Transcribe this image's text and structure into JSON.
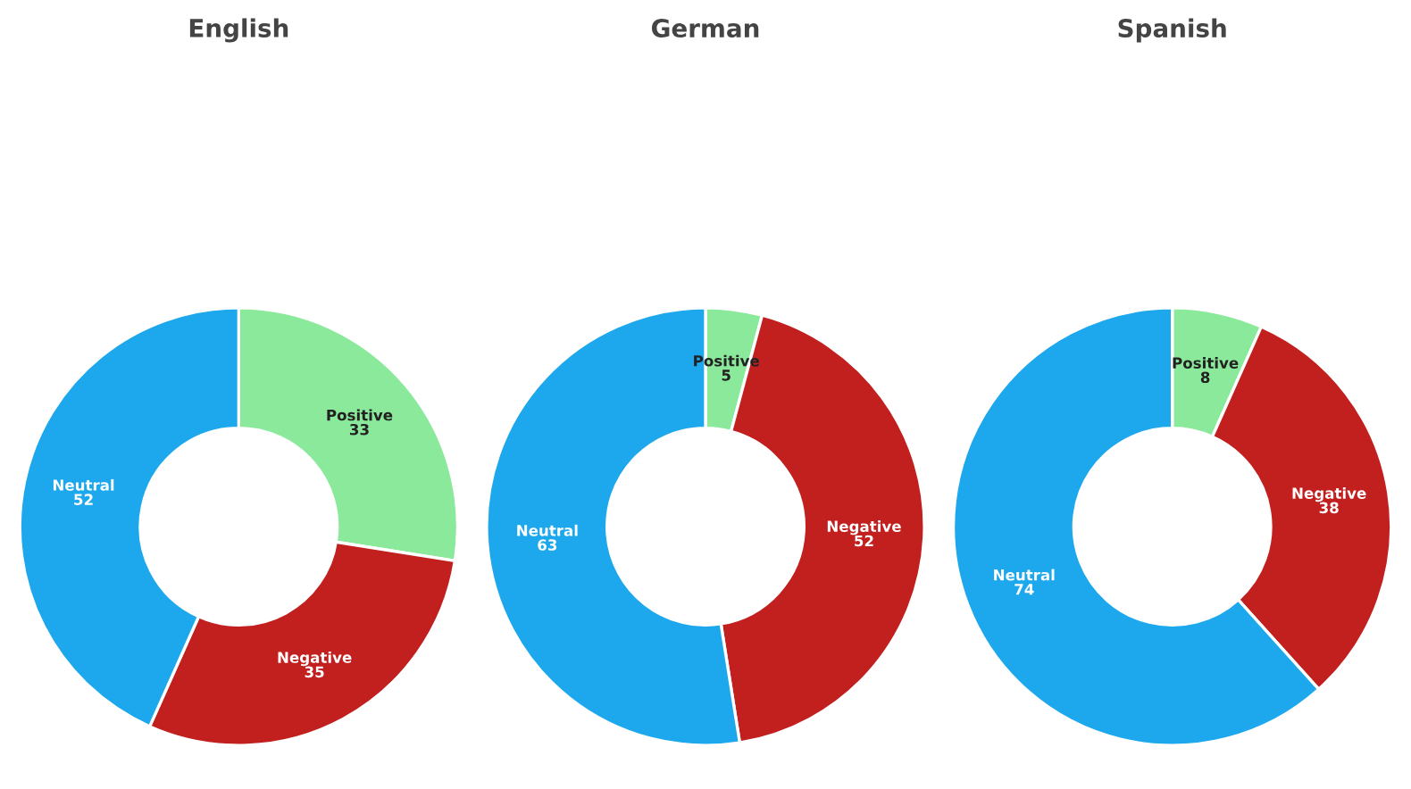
{
  "chart_data": [
    {
      "type": "donut",
      "title": "English",
      "categories": [
        "Positive",
        "Negative",
        "Neutral"
      ],
      "values": [
        33,
        35,
        52
      ],
      "colors": [
        "#8ae99a",
        "#c21f1f",
        "#1da8ee"
      ],
      "data_labels": true
    },
    {
      "type": "donut",
      "title": "German",
      "categories": [
        "Positive",
        "Negative",
        "Neutral"
      ],
      "values": [
        5,
        52,
        63
      ],
      "colors": [
        "#8ae99a",
        "#c21f1f",
        "#1da8ee"
      ],
      "data_labels": true
    },
    {
      "type": "donut",
      "title": "Spanish",
      "categories": [
        "Positive",
        "Negative",
        "Neutral"
      ],
      "values": [
        8,
        38,
        74
      ],
      "colors": [
        "#8ae99a",
        "#c21f1f",
        "#1da8ee"
      ],
      "data_labels": true
    }
  ]
}
